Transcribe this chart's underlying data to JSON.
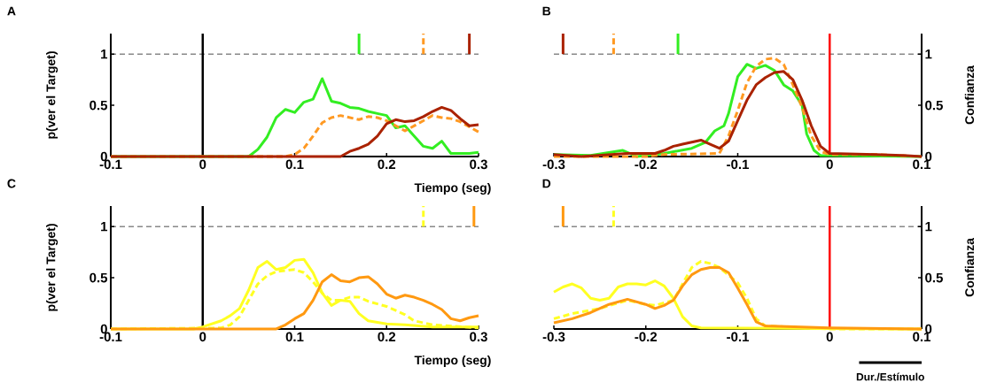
{
  "chart_data": [
    {
      "type": "line",
      "title": "A",
      "xlabel": "Tiempo (seg)",
      "ylabel": "p(ver el Target)",
      "xlim": [
        -0.1,
        0.3
      ],
      "xticks": [
        -0.1,
        0,
        0.1,
        0.2,
        0.3
      ],
      "ylim": [
        0,
        1.2
      ],
      "yticks": [
        0,
        0.5,
        1
      ],
      "ref_lines": [
        {
          "axis": "y",
          "value": 1,
          "color": "#000000",
          "line_style": "dashed"
        },
        {
          "axis": "x",
          "value": 0,
          "color": "#000000",
          "line_style": "solid"
        }
      ],
      "series": [
        {
          "color": "#33ee22",
          "line_style": "solid",
          "x": [
            -0.1,
            0.05,
            0.06,
            0.07,
            0.08,
            0.09,
            0.1,
            0.11,
            0.12,
            0.13,
            0.14,
            0.15,
            0.16,
            0.17,
            0.18,
            0.19,
            0.2,
            0.21,
            0.22,
            0.23,
            0.24,
            0.25,
            0.26,
            0.27,
            0.28,
            0.29,
            0.3
          ],
          "values": [
            0,
            0,
            0.07,
            0.19,
            0.38,
            0.46,
            0.43,
            0.53,
            0.56,
            0.76,
            0.54,
            0.52,
            0.48,
            0.47,
            0.44,
            0.42,
            0.4,
            0.28,
            0.3,
            0.2,
            0.1,
            0.08,
            0.15,
            0.03,
            0.03,
            0.03,
            0.04
          ]
        },
        {
          "color": "#ff9922",
          "line_style": "dashed",
          "x": [
            -0.1,
            0.09,
            0.1,
            0.11,
            0.12,
            0.13,
            0.14,
            0.15,
            0.16,
            0.17,
            0.18,
            0.19,
            0.2,
            0.21,
            0.22,
            0.23,
            0.24,
            0.25,
            0.26,
            0.27,
            0.28,
            0.29,
            0.3
          ],
          "values": [
            0,
            0,
            0.02,
            0.08,
            0.2,
            0.33,
            0.38,
            0.4,
            0.38,
            0.36,
            0.39,
            0.38,
            0.35,
            0.3,
            0.25,
            0.3,
            0.35,
            0.4,
            0.38,
            0.37,
            0.34,
            0.29,
            0.24
          ]
        },
        {
          "color": "#aa2200",
          "line_style": "solid",
          "x": [
            -0.1,
            0.15,
            0.16,
            0.17,
            0.18,
            0.19,
            0.2,
            0.21,
            0.22,
            0.23,
            0.24,
            0.25,
            0.26,
            0.27,
            0.28,
            0.29,
            0.3
          ],
          "values": [
            0,
            0,
            0.05,
            0.08,
            0.12,
            0.2,
            0.32,
            0.36,
            0.34,
            0.35,
            0.39,
            0.44,
            0.48,
            0.45,
            0.37,
            0.3,
            0.31
          ]
        },
        {
          "color": "#33ee22",
          "line_style": "solid",
          "x": [
            0.17,
            0.17
          ],
          "values": [
            1,
            1.2
          ]
        },
        {
          "color": "#ff9922",
          "line_style": "dashed",
          "x": [
            0.24,
            0.24
          ],
          "values": [
            1,
            1.2
          ]
        },
        {
          "color": "#aa2200",
          "line_style": "solid",
          "x": [
            0.29,
            0.29
          ],
          "values": [
            1,
            1.2
          ]
        }
      ]
    },
    {
      "type": "line",
      "title": "B",
      "y2label": "Confianza",
      "xlim": [
        -0.3,
        0.1
      ],
      "xticks": [
        -0.3,
        -0.2,
        -0.1,
        0,
        0.1
      ],
      "y2lim": [
        0,
        1.2
      ],
      "y2ticks": [
        0,
        0.5,
        1
      ],
      "ref_lines": [
        {
          "axis": "y2",
          "value": 1,
          "color": "#000000",
          "line_style": "dashed"
        },
        {
          "axis": "x",
          "value": 0,
          "color": "#ff0000",
          "line_style": "solid"
        }
      ],
      "series": [
        {
          "axis": "y2",
          "color": "#33ee22",
          "line_style": "solid",
          "x": [
            -0.3,
            -0.26,
            -0.225,
            -0.21,
            -0.18,
            -0.15,
            -0.135,
            -0.125,
            -0.115,
            -0.11,
            -0.1,
            -0.09,
            -0.08,
            -0.07,
            -0.06,
            -0.05,
            -0.04,
            -0.03,
            -0.025,
            -0.017,
            -0.01,
            0.1
          ],
          "values": [
            0.02,
            0.01,
            0.06,
            0,
            0.03,
            0.08,
            0.14,
            0.25,
            0.3,
            0.42,
            0.78,
            0.9,
            0.86,
            0.89,
            0.84,
            0.7,
            0.64,
            0.5,
            0.22,
            0.06,
            0.01,
            0
          ]
        },
        {
          "axis": "y2",
          "color": "#ff9922",
          "line_style": "dashed",
          "x": [
            -0.3,
            -0.2,
            -0.18,
            -0.12,
            -0.11,
            -0.1,
            -0.09,
            -0.08,
            -0.07,
            -0.06,
            -0.05,
            -0.04,
            -0.03,
            -0.02,
            -0.01,
            0,
            0.05,
            0.1
          ],
          "values": [
            0,
            0,
            0.02,
            0.03,
            0.2,
            0.45,
            0.72,
            0.88,
            0.95,
            0.96,
            0.9,
            0.7,
            0.48,
            0.2,
            0.05,
            0.02,
            0.02,
            0
          ]
        },
        {
          "axis": "y2",
          "color": "#aa2200",
          "line_style": "solid",
          "x": [
            -0.3,
            -0.27,
            -0.22,
            -0.19,
            -0.18,
            -0.17,
            -0.16,
            -0.14,
            -0.13,
            -0.12,
            -0.11,
            -0.1,
            -0.09,
            -0.08,
            -0.07,
            -0.06,
            -0.05,
            -0.04,
            -0.03,
            -0.02,
            -0.01,
            0,
            0.05,
            0.08,
            0.1
          ],
          "values": [
            0.02,
            0,
            0.03,
            0.03,
            0.06,
            0.1,
            0.12,
            0.16,
            0.12,
            0.08,
            0.15,
            0.35,
            0.55,
            0.7,
            0.77,
            0.82,
            0.83,
            0.75,
            0.55,
            0.3,
            0.1,
            0.03,
            0.02,
            0.01,
            0
          ]
        },
        {
          "axis": "y2",
          "color": "#aa2200",
          "line_style": "solid",
          "x": [
            -0.29,
            -0.29
          ],
          "values": [
            1,
            1.2
          ]
        },
        {
          "axis": "y2",
          "color": "#ff9922",
          "line_style": "dashed",
          "x": [
            -0.235,
            -0.235
          ],
          "values": [
            1,
            1.2
          ]
        },
        {
          "axis": "y2",
          "color": "#33ee22",
          "line_style": "solid",
          "x": [
            -0.165,
            -0.165
          ],
          "values": [
            1,
            1.2
          ]
        }
      ]
    },
    {
      "type": "line",
      "title": "C",
      "xlabel": "Tiempo (seg)",
      "ylabel": "p(ver el Target)",
      "xlim": [
        -0.1,
        0.3
      ],
      "xticks": [
        -0.1,
        0,
        0.1,
        0.2,
        0.3
      ],
      "ylim": [
        0,
        1.2
      ],
      "yticks": [
        0,
        0.5,
        1
      ],
      "ref_lines": [
        {
          "axis": "y",
          "value": 1,
          "color": "#000000",
          "line_style": "dashed"
        },
        {
          "axis": "x",
          "value": 0,
          "color": "#000000",
          "line_style": "solid"
        }
      ],
      "series": [
        {
          "color": "#ffff22",
          "line_style": "solid",
          "x": [
            -0.1,
            -0.01,
            0,
            0.02,
            0.03,
            0.04,
            0.05,
            0.06,
            0.07,
            0.08,
            0.09,
            0.1,
            0.11,
            0.12,
            0.13,
            0.14,
            0.15,
            0.16,
            0.17,
            0.18,
            0.2,
            0.22,
            0.25,
            0.3
          ],
          "values": [
            0,
            0,
            0.02,
            0.08,
            0.13,
            0.2,
            0.38,
            0.6,
            0.66,
            0.58,
            0.6,
            0.67,
            0.68,
            0.55,
            0.35,
            0.23,
            0.28,
            0.27,
            0.15,
            0.08,
            0.05,
            0.04,
            0.02,
            0.02
          ]
        },
        {
          "color": "#ffff22",
          "line_style": "dashed",
          "x": [
            -0.1,
            0.02,
            0.03,
            0.04,
            0.05,
            0.06,
            0.07,
            0.08,
            0.09,
            0.1,
            0.11,
            0.12,
            0.13,
            0.14,
            0.15,
            0.16,
            0.17,
            0.18,
            0.2,
            0.22,
            0.23,
            0.25,
            0.3
          ],
          "values": [
            0,
            0.01,
            0.04,
            0.12,
            0.28,
            0.44,
            0.52,
            0.56,
            0.57,
            0.58,
            0.55,
            0.46,
            0.35,
            0.28,
            0.28,
            0.31,
            0.31,
            0.27,
            0.22,
            0.14,
            0.08,
            0.04,
            0.01
          ]
        },
        {
          "color": "#ff9911",
          "line_style": "solid",
          "x": [
            -0.1,
            0.08,
            0.09,
            0.1,
            0.11,
            0.12,
            0.13,
            0.14,
            0.15,
            0.16,
            0.17,
            0.18,
            0.19,
            0.2,
            0.21,
            0.22,
            0.23,
            0.24,
            0.25,
            0.26,
            0.27,
            0.28,
            0.29,
            0.3
          ],
          "values": [
            0,
            0,
            0.04,
            0.1,
            0.15,
            0.28,
            0.46,
            0.53,
            0.47,
            0.46,
            0.5,
            0.51,
            0.44,
            0.34,
            0.3,
            0.33,
            0.31,
            0.28,
            0.24,
            0.19,
            0.1,
            0.08,
            0.11,
            0.13
          ]
        },
        {
          "color": "#ffff22",
          "line_style": "dashed",
          "x": [
            0.24,
            0.24
          ],
          "values": [
            1,
            1.2
          ]
        },
        {
          "color": "#ff9911",
          "line_style": "solid",
          "x": [
            0.295,
            0.295
          ],
          "values": [
            1,
            1.2
          ]
        }
      ]
    },
    {
      "type": "line",
      "title": "D",
      "y2label": "Confianza",
      "xlim": [
        -0.3,
        0.1
      ],
      "xticks": [
        -0.3,
        -0.2,
        -0.1,
        0,
        0.1
      ],
      "y2lim": [
        0,
        1.2
      ],
      "y2ticks": [
        0,
        0.5,
        1
      ],
      "ref_lines": [
        {
          "axis": "y2",
          "value": 1,
          "color": "#000000",
          "line_style": "dashed"
        },
        {
          "axis": "x",
          "value": 0,
          "color": "#ff0000",
          "line_style": "solid"
        }
      ],
      "annotations": [
        "Dur./Estímulo"
      ],
      "series": [
        {
          "axis": "y2",
          "color": "#ffff22",
          "line_style": "solid",
          "x": [
            -0.3,
            -0.29,
            -0.28,
            -0.27,
            -0.26,
            -0.25,
            -0.24,
            -0.23,
            -0.22,
            -0.21,
            -0.2,
            -0.19,
            -0.18,
            -0.17,
            -0.16,
            -0.15,
            -0.14,
            0.1
          ],
          "values": [
            0.36,
            0.41,
            0.44,
            0.4,
            0.3,
            0.28,
            0.3,
            0.41,
            0.44,
            0.44,
            0.43,
            0.47,
            0.42,
            0.3,
            0.12,
            0.03,
            0.01,
            0
          ]
        },
        {
          "axis": "y2",
          "color": "#ffff22",
          "line_style": "dashed",
          "x": [
            -0.3,
            -0.28,
            -0.25,
            -0.22,
            -0.2,
            -0.19,
            -0.17,
            -0.16,
            -0.15,
            -0.14,
            -0.13,
            -0.12,
            -0.1,
            -0.09,
            -0.08,
            -0.07,
            0,
            0.1
          ],
          "values": [
            0.1,
            0.15,
            0.2,
            0.28,
            0.24,
            0.23,
            0.28,
            0.44,
            0.6,
            0.66,
            0.64,
            0.6,
            0.45,
            0.3,
            0.1,
            0.03,
            0,
            0
          ]
        },
        {
          "axis": "y2",
          "color": "#ff9911",
          "line_style": "solid",
          "x": [
            -0.3,
            -0.28,
            -0.26,
            -0.24,
            -0.22,
            -0.2,
            -0.19,
            -0.18,
            -0.17,
            -0.16,
            -0.15,
            -0.14,
            -0.13,
            -0.12,
            -0.11,
            -0.1,
            -0.09,
            -0.08,
            -0.07,
            0,
            0.1
          ],
          "values": [
            0.06,
            0.1,
            0.16,
            0.24,
            0.29,
            0.24,
            0.2,
            0.23,
            0.28,
            0.42,
            0.53,
            0.58,
            0.6,
            0.6,
            0.55,
            0.4,
            0.24,
            0.07,
            0.03,
            0.01,
            0
          ]
        },
        {
          "axis": "y2",
          "color": "#ff9911",
          "line_style": "solid",
          "x": [
            -0.29,
            -0.29
          ],
          "values": [
            1,
            1.2
          ]
        },
        {
          "axis": "y2",
          "color": "#ffff22",
          "line_style": "dashed",
          "x": [
            -0.235,
            -0.235
          ],
          "values": [
            1,
            1.2
          ]
        }
      ]
    }
  ]
}
